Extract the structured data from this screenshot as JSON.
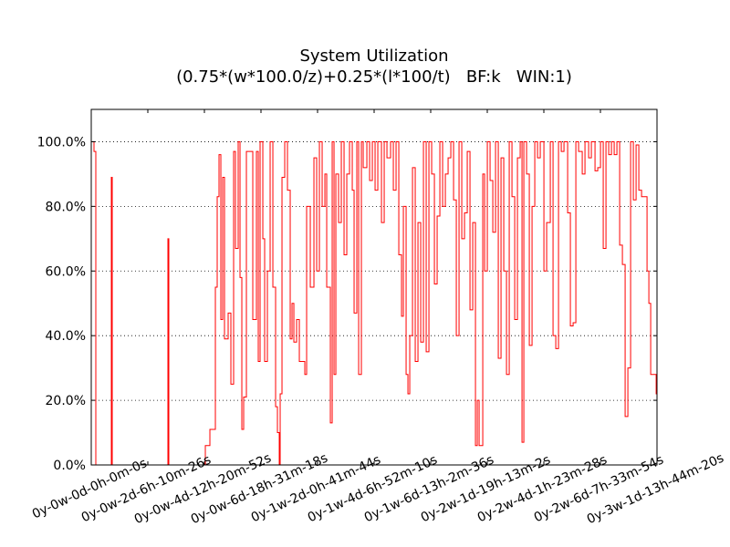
{
  "chart_data": {
    "type": "line",
    "title": "System Utilization",
    "subtitle": "(0.75*(w*100.0/z)+0.25*(l*100/t)   BF:k   WIN:1)",
    "color": "#ff0000",
    "step": true,
    "grid": "y",
    "xlim": [
      0,
      1950260
    ],
    "ylim": [
      0,
      110
    ],
    "xticks": [
      {
        "value": 0,
        "label": "0y-0w-0d-0h-0m-0s"
      },
      {
        "value": 195026,
        "label": "0y-0w-2d-6h-10m-26s"
      },
      {
        "value": 390052,
        "label": "0y-0w-4d-12h-20m-52s"
      },
      {
        "value": 585078,
        "label": "0y-0w-6d-18h-31m-18s"
      },
      {
        "value": 780104,
        "label": "0y-1w-2d-0h-41m-44s"
      },
      {
        "value": 975130,
        "label": "0y-1w-4d-6h-52m-10s"
      },
      {
        "value": 1170156,
        "label": "0y-1w-6d-13h-2m-36s"
      },
      {
        "value": 1365182,
        "label": "0y-2w-1d-19h-13m-2s"
      },
      {
        "value": 1560208,
        "label": "0y-2w-4d-1h-23m-28s"
      },
      {
        "value": 1755234,
        "label": "0y-2w-6d-7h-33m-54s"
      },
      {
        "value": 1950260,
        "label": "0y-3w-1d-13h-44m-20s"
      }
    ],
    "yticks": [
      {
        "value": 0,
        "label": "0.0%"
      },
      {
        "value": 20,
        "label": "20.0%"
      },
      {
        "value": 40,
        "label": "40.0%"
      },
      {
        "value": 60,
        "label": "60.0%"
      },
      {
        "value": 80,
        "label": "80.0%"
      },
      {
        "value": 100,
        "label": "100.0%"
      }
    ],
    "x": [
      0,
      9438,
      15730,
      69212,
      72358,
      264264,
      267410,
      393250,
      408980,
      427856,
      434148,
      440440,
      446732,
      453024,
      459316,
      471900,
      481338,
      490776,
      497068,
      506506,
      512798,
      519090,
      525382,
      534820,
      556842,
      569426,
      575718,
      582010,
      591448,
      597740,
      607178,
      616616,
      626054,
      635492,
      641784,
      648076,
      651222,
      657514,
      666952,
      676390,
      685828,
      692120,
      698412,
      707850,
      717288,
      736164,
      742456,
      755040,
      767624,
      777062,
      786500,
      795938,
      805376,
      811668,
      824252,
      830544,
      836836,
      843128,
      852566,
      862004,
      871442,
      880880,
      890318,
      899756,
      906048,
      915486,
      921778,
      931216,
      937508,
      950092,
      959530,
      968968,
      978406,
      987844,
      1000428,
      1009866,
      1019304,
      1031888,
      1041326,
      1050764,
      1060202,
      1069640,
      1075932,
      1085370,
      1091662,
      1097954,
      1107392,
      1116830,
      1126268,
      1135706,
      1145144,
      1154582,
      1164020,
      1173458,
      1182896,
      1192334,
      1201772,
      1211210,
      1220648,
      1230086,
      1239524,
      1248962,
      1258400,
      1267838,
      1277276,
      1286714,
      1296152,
      1305590,
      1315028,
      1324466,
      1330758,
      1337050,
      1349634,
      1355926,
      1365364,
      1374802,
      1384240,
      1393678,
      1403116,
      1412554,
      1421992,
      1431430,
      1440868,
      1450306,
      1459744,
      1469182,
      1478620,
      1484912,
      1491204,
      1500642,
      1510080,
      1519518,
      1528956,
      1538394,
      1547832,
      1560416,
      1569854,
      1582438,
      1591876,
      1601314,
      1610752,
      1620190,
      1629628,
      1642212,
      1651650,
      1661088,
      1670526,
      1679964,
      1692548,
      1701986,
      1714570,
      1724008,
      1736592,
      1746030,
      1755468,
      1764906,
      1774344,
      1783782,
      1793220,
      1802658,
      1812096,
      1821534,
      1830972,
      1840410,
      1849848,
      1859286,
      1868724,
      1878162,
      1887600,
      1897038,
      1915914,
      1922206,
      1928498,
      1947374
    ],
    "values": [
      100,
      97,
      0,
      89,
      0,
      70,
      0,
      6,
      11,
      55,
      83,
      96,
      45,
      89,
      39,
      47,
      25,
      97,
      67,
      100,
      58,
      11,
      21,
      97,
      45,
      97,
      32,
      100,
      70,
      32,
      60,
      100,
      55,
      18,
      10,
      0,
      22,
      89,
      100,
      85,
      39,
      50,
      38,
      45,
      32,
      28,
      80,
      55,
      95,
      60,
      100,
      80,
      90,
      55,
      13,
      100,
      28,
      90,
      75,
      100,
      65,
      90,
      100,
      85,
      47,
      100,
      28,
      100,
      92,
      100,
      88,
      100,
      85,
      100,
      75,
      100,
      95,
      100,
      85,
      100,
      65,
      46,
      80,
      28,
      22,
      40,
      92,
      32,
      75,
      38,
      100,
      35,
      100,
      90,
      56,
      77,
      100,
      80,
      90,
      95,
      100,
      82,
      40,
      100,
      70,
      78,
      97,
      48,
      75,
      6,
      20,
      6,
      90,
      60,
      100,
      88,
      72,
      100,
      33,
      95,
      60,
      28,
      100,
      83,
      45,
      95,
      100,
      7,
      100,
      90,
      37,
      80,
      100,
      95,
      100,
      60,
      75,
      100,
      40,
      36,
      100,
      97,
      100,
      78,
      43,
      44,
      100,
      97,
      90,
      100,
      95,
      100,
      91,
      92,
      100,
      67,
      100,
      96,
      100,
      96,
      100,
      68,
      62,
      15,
      30,
      100,
      82,
      99,
      85,
      83,
      60,
      50,
      28,
      22
    ]
  }
}
